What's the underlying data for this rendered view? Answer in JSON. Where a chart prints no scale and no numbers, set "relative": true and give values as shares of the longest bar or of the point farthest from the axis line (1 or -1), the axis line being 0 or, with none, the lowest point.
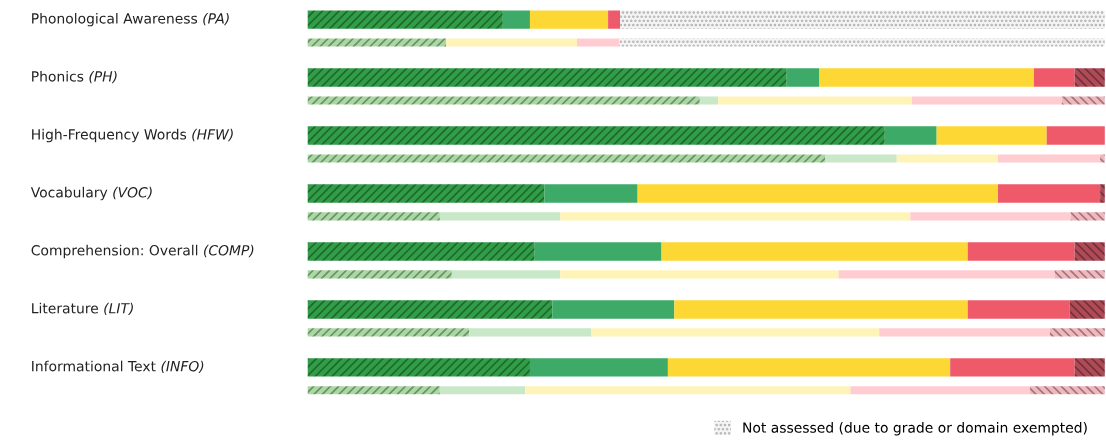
{
  "chart_data": {
    "type": "bar",
    "orientation": "horizontal",
    "stacked": true,
    "relative": true,
    "legend": "bottom right",
    "categories": [
      "Phonological Awareness (PA)",
      null,
      "Phonics (PH)",
      null,
      "High-Frequency Words (HFW)",
      null,
      "Vocabulary (VOC)",
      null,
      "Comprehension: Overall (COMP)",
      null,
      "Literature (LIT)",
      null,
      "Informational Text (INFO)",
      null
    ],
    "series": [
      {
        "values": [
          0.245,
          0.174,
          0.601,
          0.492,
          0.724,
          0.649,
          0.297,
          0.166,
          0.285,
          0.181,
          0.307,
          0.203,
          0.279,
          0.166
        ],
        "colors": [
          "#2f9e47",
          "#a9d9a2",
          "#2f9e47",
          "#a9d9a2",
          "#2f9e47",
          "#a9d9a2",
          "#2f9e47",
          "#a9d9a2",
          "#2f9e47",
          "#a9d9a2",
          "#2f9e47",
          "#a9d9a2",
          "#2f9e47",
          "#a9d9a2"
        ]
      },
      {
        "values": [
          0.034,
          0,
          0.041,
          0.023,
          0.065,
          0.09,
          0.117,
          0.151,
          0.159,
          0.136,
          0.153,
          0.153,
          0.173,
          0.107
        ],
        "colors": [
          "#3daa68",
          "#c8e8c8",
          "#3daa68",
          "#c8e8c8",
          "#3daa68",
          "#c8e8c8",
          "#3daa68",
          "#c8e8c8",
          "#3daa68",
          "#c8e8c8",
          "#3daa68",
          "#c8e8c8",
          "#3daa68",
          "#c8e8c8"
        ]
      },
      {
        "values": [
          0.098,
          0.164,
          0.269,
          0.243,
          0.138,
          0.127,
          0.452,
          0.439,
          0.384,
          0.349,
          0.368,
          0.361,
          0.354,
          0.408
        ],
        "colors": [
          "#fdd835",
          "#fff4b8",
          "#fdd835",
          "#fff4b8",
          "#fdd835",
          "#fff4b8",
          "#fdd835",
          "#fff4b8",
          "#fdd835",
          "#fff4b8",
          "#fdd835",
          "#fff4b8",
          "#fdd835",
          "#fff4b8"
        ]
      },
      {
        "values": [
          0.015,
          0.053,
          0.051,
          0.188,
          0.073,
          0.128,
          0.128,
          0.201,
          0.134,
          0.271,
          0.128,
          0.214,
          0.156,
          0.225
        ],
        "colors": [
          "#ee5a6a",
          "#ffccd2",
          "#ee5a6a",
          "#ffccd2",
          "#ee5a6a",
          "#ffccd2",
          "#ee5a6a",
          "#ffccd2",
          "#ee5a6a",
          "#ffccd2",
          "#ee5a6a",
          "#ffccd2",
          "#ee5a6a",
          "#ffccd2"
        ]
      },
      {
        "values": [
          0,
          0,
          0.038,
          0.054,
          0,
          0.006,
          0.006,
          0.043,
          0.038,
          0.063,
          0.044,
          0.069,
          0.038,
          0.094
        ],
        "colors": [
          "#b04a56",
          "#f2b6bd",
          "#b04a56",
          "#f2b6bd",
          "#b04a56",
          "#f2b6bd",
          "#b04a56",
          "#f2b6bd",
          "#b04a56",
          "#f2b6bd",
          "#b04a56",
          "#f2b6bd",
          "#b04a56",
          "#f2b6bd"
        ]
      },
      {
        "name": "Not assessed (due to grade or domain exempted)",
        "values": [
          0.608,
          0.609,
          0,
          0,
          0,
          0,
          0,
          0,
          0,
          0,
          0,
          0,
          0,
          0
        ],
        "color": "#b0b0b0"
      }
    ]
  }
}
